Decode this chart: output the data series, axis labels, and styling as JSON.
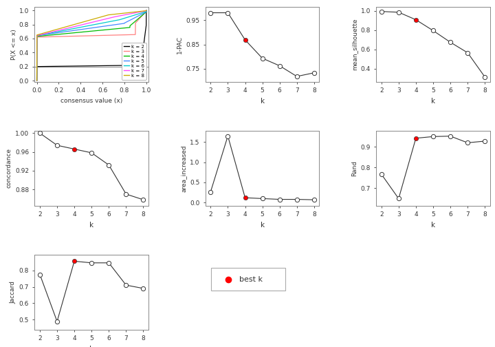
{
  "k_values": [
    2,
    3,
    4,
    5,
    6,
    7,
    8
  ],
  "one_pac": [
    0.981,
    0.981,
    0.869,
    0.793,
    0.762,
    0.718,
    0.733
  ],
  "one_pac_best_k": 4,
  "mean_silhouette": [
    0.993,
    0.985,
    0.907,
    0.794,
    0.673,
    0.564,
    0.312
  ],
  "mean_silhouette_best_k": 4,
  "concordance": [
    1.0,
    0.974,
    0.966,
    0.958,
    0.932,
    0.87,
    0.858
  ],
  "concordance_best_k": 4,
  "area_increased": [
    0.268,
    1.65,
    0.12,
    0.1,
    0.08,
    0.08,
    0.07
  ],
  "area_increased_best_k": 4,
  "rand": [
    0.768,
    0.65,
    0.942,
    0.95,
    0.952,
    0.92,
    0.928
  ],
  "rand_best_k": 4,
  "jaccard": [
    0.775,
    0.49,
    0.855,
    0.845,
    0.845,
    0.71,
    0.69
  ],
  "jaccard_best_k": 4,
  "ecdf_colors": [
    "#000000",
    "#FF8080",
    "#00BB00",
    "#4488FF",
    "#00CCCC",
    "#FF44FF",
    "#CCAA00"
  ],
  "ecdf_labels": [
    "k = 2",
    "k = 3",
    "k = 4",
    "k = 5",
    "k = 6",
    "k = 7",
    "k = 8"
  ],
  "bg_color": "#ffffff",
  "point_color_open": "#ffffff",
  "point_color_best": "#FF0000",
  "line_color": "#333333"
}
